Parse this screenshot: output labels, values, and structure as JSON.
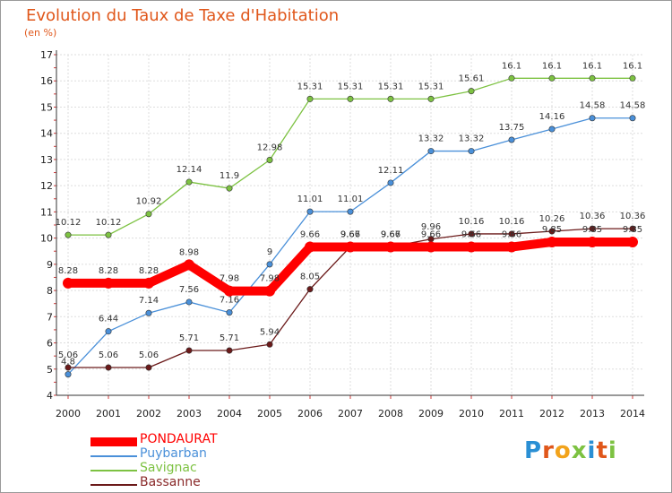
{
  "title": "Evolution du Taux de Taxe d'Habitation",
  "subtitle": "(en %)",
  "logo": "Proxiti",
  "chart_data": {
    "type": "line",
    "title": "Evolution du Taux de Taxe d'Habitation",
    "ylabel": "(en %)",
    "xlabel": "",
    "x": [
      "2000",
      "2001",
      "2002",
      "2003",
      "2004",
      "2005",
      "2006",
      "2007",
      "2008",
      "2009",
      "2010",
      "2011",
      "2012",
      "2013",
      "2014"
    ],
    "ylim": [
      4,
      17
    ],
    "yticks": [
      4,
      5,
      6,
      7,
      8,
      9,
      10,
      11,
      12,
      13,
      14,
      15,
      16,
      17
    ],
    "grid": true,
    "legend_position": "bottom-left",
    "series": [
      {
        "name": "PONDAURAT",
        "color": "#ff0000",
        "width": "thick",
        "values": [
          8.28,
          8.28,
          8.28,
          8.98,
          7.98,
          7.98,
          9.66,
          9.66,
          9.66,
          9.66,
          9.66,
          9.66,
          9.85,
          9.85,
          9.85
        ]
      },
      {
        "name": "Puybarban",
        "color": "#4a90d9",
        "width": "thin",
        "values": [
          4.8,
          6.44,
          7.14,
          7.56,
          7.16,
          9,
          11.01,
          11.01,
          12.11,
          13.32,
          13.32,
          13.75,
          14.16,
          14.58,
          14.58
        ]
      },
      {
        "name": "Savignac",
        "color": "#7dc242",
        "width": "thin",
        "values": [
          10.12,
          10.12,
          10.92,
          12.14,
          11.9,
          12.98,
          15.31,
          15.31,
          15.31,
          15.31,
          15.61,
          16.1,
          16.1,
          16.1,
          16.1
        ]
      },
      {
        "name": "Bassanne",
        "color": "#6b1a1a",
        "width": "thin",
        "values": [
          5.06,
          5.06,
          5.06,
          5.71,
          5.71,
          5.94,
          8.05,
          9.67,
          9.67,
          9.96,
          10.16,
          10.16,
          10.26,
          10.36,
          10.36
        ]
      }
    ],
    "point_labels": [
      {
        "series": "PONDAURAT",
        "values": [
          "8.28",
          "8.28",
          "8.28",
          "8.98",
          "7.98",
          "7.98",
          "9.66",
          "9.66",
          "9.66",
          "9.66",
          "9.66",
          "9.66",
          "9.85",
          "9.85",
          "9.85"
        ]
      },
      {
        "series": "Puybarban",
        "values": [
          "4.8",
          "6.44",
          "7.14",
          "7.56",
          "7.16",
          "9",
          "11.01",
          "11.01",
          "12.11",
          "13.32",
          "13.32",
          "13.75",
          "14.16",
          "14.58",
          "14.58"
        ]
      },
      {
        "series": "Savignac",
        "values": [
          "10.12",
          "10.12",
          "10.92",
          "12.14",
          "11.9",
          "12.98",
          "15.31",
          "15.31",
          "15.31",
          "15.31",
          "15.61",
          "16.1",
          "16.1",
          "16.1",
          "16.1"
        ]
      },
      {
        "series": "Bassanne",
        "values": [
          "5.06",
          "5.06",
          "5.06",
          "5.71",
          "5.71",
          "5.94",
          "8.05",
          "9.67",
          "9.67",
          "9.96",
          "10.16",
          "10.16",
          "10.26",
          "10.36",
          "10.36"
        ]
      }
    ]
  }
}
